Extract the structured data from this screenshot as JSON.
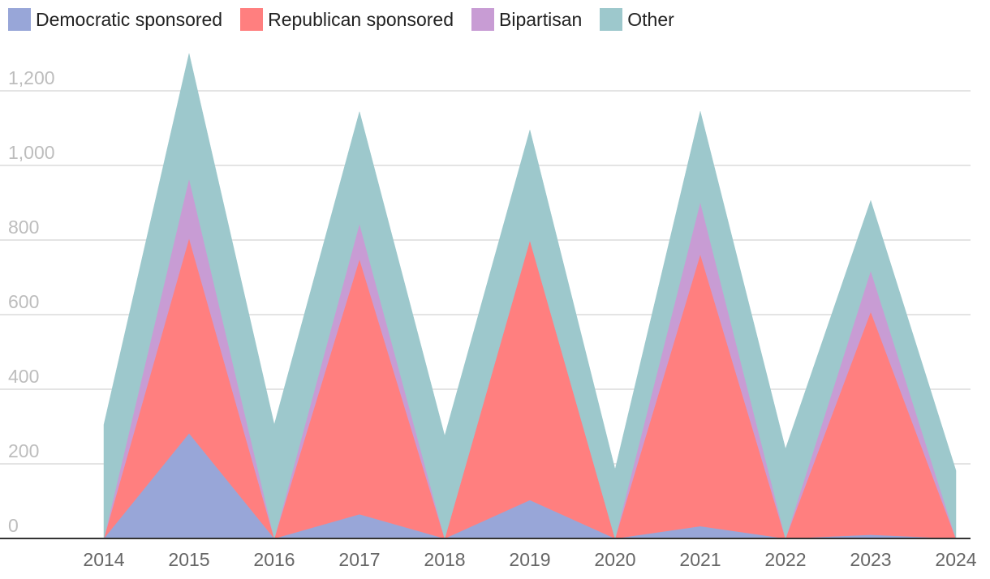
{
  "chart_data": {
    "type": "area",
    "stacked": true,
    "categories": [
      "2014",
      "2015",
      "2016",
      "2017",
      "2018",
      "2019",
      "2020",
      "2021",
      "2022",
      "2023",
      "2024"
    ],
    "series": [
      {
        "name": "Democratic sponsored",
        "color": "#98a6d8",
        "values": [
          0,
          282,
          0,
          65,
          0,
          103,
          0,
          33,
          0,
          10,
          0
        ]
      },
      {
        "name": "Republican sponsored",
        "color": "#ff7f7f",
        "values": [
          0,
          523,
          0,
          684,
          0,
          697,
          0,
          729,
          0,
          598,
          0
        ]
      },
      {
        "name": "Bipartisan",
        "color": "#c89cd4",
        "values": [
          0,
          160,
          0,
          95,
          0,
          0,
          0,
          140,
          0,
          110,
          0
        ]
      },
      {
        "name": "Other",
        "color": "#9dc8cc",
        "values": [
          305,
          335,
          305,
          300,
          275,
          295,
          185,
          243,
          240,
          188,
          182
        ]
      }
    ],
    "yticks": [
      0,
      200,
      400,
      600,
      800,
      1000,
      1200
    ],
    "ytick_labels": [
      "0",
      "200",
      "400",
      "600",
      "800",
      "1,000",
      "1,200"
    ],
    "ylim": [
      0,
      1300
    ],
    "grid": true,
    "legend_position": "top-left",
    "title": "",
    "xlabel": "",
    "ylabel": ""
  }
}
